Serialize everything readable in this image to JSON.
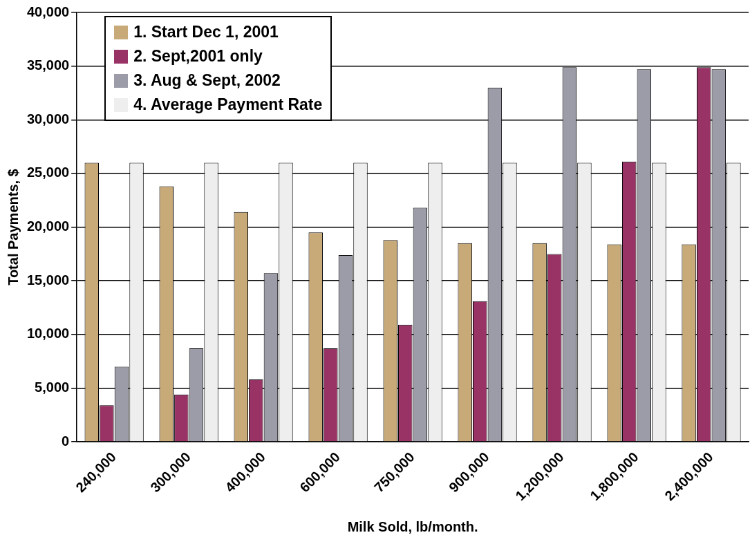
{
  "chart_data": {
    "type": "bar",
    "xlabel": "Milk Sold, lb/month.",
    "ylabel": "Total Payments, $",
    "categories": [
      "240,000",
      "300,000",
      "400,000",
      "600,000",
      "750,000",
      "900,000",
      "1,200,000",
      "1,800,000",
      "2,400,000"
    ],
    "series": [
      {
        "name": "1. Start Dec 1, 2001",
        "color": "#c8aa78",
        "values": [
          26000,
          23800,
          21400,
          19500,
          18800,
          18500,
          18500,
          18400,
          18400
        ]
      },
      {
        "name": "2. Sept,2001 only",
        "color": "#993366",
        "values": [
          3400,
          4400,
          5800,
          8700,
          10900,
          13100,
          17500,
          26100,
          34900
        ]
      },
      {
        "name": "3. Aug & Sept, 2002",
        "color": "#9c9ca8",
        "values": [
          7000,
          8700,
          15700,
          17400,
          21800,
          33000,
          34900,
          34700,
          34700
        ]
      },
      {
        "name": "4. Average Payment Rate",
        "color": "#eeeeee",
        "values": [
          26000,
          26000,
          26000,
          26000,
          26000,
          26000,
          26000,
          26000,
          26000
        ]
      }
    ],
    "ylim": [
      0,
      40000
    ],
    "yticks": [
      {
        "value": 0,
        "label": "0"
      },
      {
        "value": 5000,
        "label": "5,000"
      },
      {
        "value": 10000,
        "label": "10,000"
      },
      {
        "value": 15000,
        "label": "15,000"
      },
      {
        "value": 20000,
        "label": "20,000"
      },
      {
        "value": 25000,
        "label": "25,000"
      },
      {
        "value": 30000,
        "label": "30,000"
      },
      {
        "value": 35000,
        "label": "35,000"
      },
      {
        "value": 40000,
        "label": "40,000"
      }
    ],
    "grid": "y",
    "legend": "top left"
  }
}
